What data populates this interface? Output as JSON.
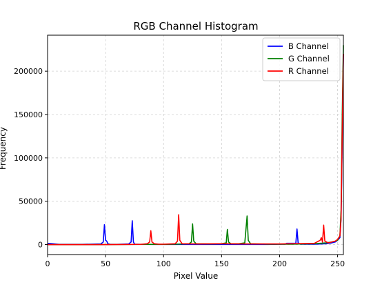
{
  "chart_data": {
    "type": "line",
    "title": "RGB Channel Histogram",
    "xlabel": "Pixel Value",
    "ylabel": "Frequency",
    "xlim": [
      0,
      255
    ],
    "ylim": [
      -11500,
      241500
    ],
    "xticks": [
      0,
      50,
      100,
      150,
      200,
      250
    ],
    "yticks": [
      0,
      50000,
      100000,
      150000,
      200000
    ],
    "grid": true,
    "legend_position": "top-right",
    "series": [
      {
        "name": "B Channel",
        "color": "#0000ff",
        "points": [
          [
            0,
            1500
          ],
          [
            10,
            300
          ],
          [
            30,
            300
          ],
          [
            46,
            800
          ],
          [
            48,
            3000
          ],
          [
            49,
            23000
          ],
          [
            50,
            5000
          ],
          [
            51,
            4000
          ],
          [
            52,
            1000
          ],
          [
            54,
            300
          ],
          [
            60,
            300
          ],
          [
            70,
            800
          ],
          [
            72,
            3000
          ],
          [
            73,
            27500
          ],
          [
            74,
            3000
          ],
          [
            75,
            500
          ],
          [
            80,
            300
          ],
          [
            90,
            200
          ],
          [
            110,
            200
          ],
          [
            150,
            200
          ],
          [
            190,
            200
          ],
          [
            205,
            500
          ],
          [
            206,
            1500
          ],
          [
            214,
            1500
          ],
          [
            215,
            18000
          ],
          [
            216,
            2000
          ],
          [
            218,
            500
          ],
          [
            230,
            500
          ],
          [
            240,
            1000
          ],
          [
            245,
            2000
          ],
          [
            248,
            3000
          ],
          [
            250,
            5000
          ],
          [
            252,
            8000
          ],
          [
            253,
            30000
          ],
          [
            254,
            120000
          ],
          [
            255,
            220000
          ]
        ]
      },
      {
        "name": "G Channel",
        "color": "#008000",
        "points": [
          [
            0,
            0
          ],
          [
            40,
            0
          ],
          [
            88,
            300
          ],
          [
            100,
            300
          ],
          [
            110,
            500
          ],
          [
            122,
            1000
          ],
          [
            124,
            3000
          ],
          [
            125,
            24000
          ],
          [
            126,
            4000
          ],
          [
            128,
            1000
          ],
          [
            140,
            800
          ],
          [
            150,
            1000
          ],
          [
            154,
            2000
          ],
          [
            155,
            17500
          ],
          [
            156,
            3000
          ],
          [
            158,
            1000
          ],
          [
            165,
            1000
          ],
          [
            170,
            2000
          ],
          [
            172,
            33000
          ],
          [
            173,
            5000
          ],
          [
            175,
            1000
          ],
          [
            190,
            500
          ],
          [
            210,
            500
          ],
          [
            230,
            1000
          ],
          [
            240,
            2000
          ],
          [
            245,
            3000
          ],
          [
            248,
            4000
          ],
          [
            250,
            5000
          ],
          [
            252,
            10000
          ],
          [
            253,
            40000
          ],
          [
            254,
            150000
          ],
          [
            255,
            230000
          ]
        ]
      },
      {
        "name": "R Channel",
        "color": "#ff0000",
        "points": [
          [
            0,
            0
          ],
          [
            50,
            0
          ],
          [
            80,
            300
          ],
          [
            86,
            1000
          ],
          [
            88,
            3000
          ],
          [
            89,
            16000
          ],
          [
            90,
            3000
          ],
          [
            92,
            1000
          ],
          [
            96,
            500
          ],
          [
            100,
            500
          ],
          [
            110,
            1000
          ],
          [
            112,
            4000
          ],
          [
            113,
            34500
          ],
          [
            114,
            5000
          ],
          [
            116,
            1000
          ],
          [
            130,
            800
          ],
          [
            150,
            1000
          ],
          [
            170,
            800
          ],
          [
            200,
            800
          ],
          [
            210,
            1000
          ],
          [
            230,
            1500
          ],
          [
            235,
            5000
          ],
          [
            236,
            8000
          ],
          [
            237,
            3000
          ],
          [
            238,
            22500
          ],
          [
            239,
            4000
          ],
          [
            242,
            2000
          ],
          [
            245,
            3000
          ],
          [
            248,
            4000
          ],
          [
            250,
            6000
          ],
          [
            252,
            10000
          ],
          [
            253,
            30000
          ],
          [
            254,
            130000
          ],
          [
            255,
            220000
          ]
        ]
      }
    ]
  }
}
